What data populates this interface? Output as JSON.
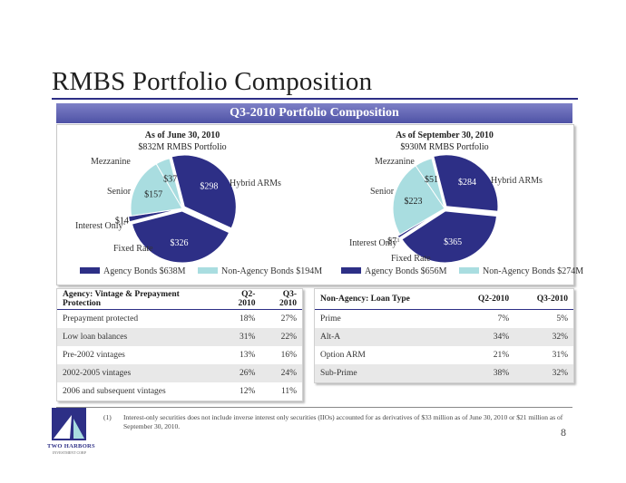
{
  "page": {
    "title": "RMBS Portfolio Composition",
    "banner": "Q3-2010 Portfolio Composition",
    "page_number": "8"
  },
  "colors": {
    "agency": "#2d2f86",
    "non_agency": "#a9dde0",
    "accent": "#2d2f86"
  },
  "chart_data": [
    {
      "type": "pie",
      "title": "As of June 30, 2010",
      "subtitle": "$832M RMBS Portfolio",
      "slices": [
        {
          "label": "Hybrid ARMs",
          "value": 298,
          "value_label": "$298",
          "group": "agency"
        },
        {
          "label": "Fixed Rate",
          "value": 326,
          "value_label": "$326",
          "group": "agency"
        },
        {
          "label": "Interest Only",
          "value": 14,
          "value_label": "$14",
          "group": "agency"
        },
        {
          "label": "Senior",
          "value": 157,
          "value_label": "$157",
          "group": "non_agency"
        },
        {
          "label": "Mezzanine",
          "value": 37,
          "value_label": "$37",
          "group": "non_agency"
        }
      ],
      "legend": [
        "Agency Bonds $638M",
        "Non-Agency Bonds $194M"
      ]
    },
    {
      "type": "pie",
      "title": "As of September 30, 2010",
      "subtitle": "$930M RMBS Portfolio",
      "slices": [
        {
          "label": "Hybrid ARMs",
          "value": 284,
          "value_label": "$284",
          "group": "agency"
        },
        {
          "label": "Fixed Rate",
          "value": 365,
          "value_label": "$365",
          "group": "agency"
        },
        {
          "label": "Interest Only",
          "value": 7,
          "value_label": "$7",
          "group": "agency"
        },
        {
          "label": "Senior",
          "value": 223,
          "value_label": "$223",
          "group": "non_agency"
        },
        {
          "label": "Mezzanine",
          "value": 51,
          "value_label": "$51",
          "group": "non_agency"
        }
      ],
      "legend": [
        "Agency Bonds $656M",
        "Non-Agency Bonds $274M"
      ]
    }
  ],
  "interest_only_label": "Interest Only",
  "interest_only_superscript": "1",
  "agency_table": {
    "headers": [
      "Agency: Vintage & Prepayment Protection",
      "Q2-2010",
      "Q3-2010"
    ],
    "rows": [
      [
        "Prepayment protected",
        "18%",
        "27%"
      ],
      [
        "Low loan balances",
        "31%",
        "22%"
      ],
      [
        "Pre-2002 vintages",
        "13%",
        "16%"
      ],
      [
        "2002-2005 vintages",
        "26%",
        "24%"
      ],
      [
        "2006 and subsequent vintages",
        "12%",
        "11%"
      ]
    ]
  },
  "non_agency_table": {
    "headers": [
      "Non-Agency: Loan Type",
      "Q2-2010",
      "Q3-2010"
    ],
    "rows": [
      [
        "Prime",
        "7%",
        "5%"
      ],
      [
        "Alt-A",
        "34%",
        "32%"
      ],
      [
        "Option ARM",
        "21%",
        "31%"
      ],
      [
        "Sub-Prime",
        "38%",
        "32%"
      ]
    ]
  },
  "footnote": {
    "mark": "(1)",
    "text": "Interest-only securities does not include inverse interest only securities (IIOs) accounted for as derivatives of $33 million as of June 30, 2010 or $21 million as of September 30, 2010."
  },
  "logo": {
    "name": "TWO HARBORS",
    "tagline": "INVESTMENT CORP"
  }
}
